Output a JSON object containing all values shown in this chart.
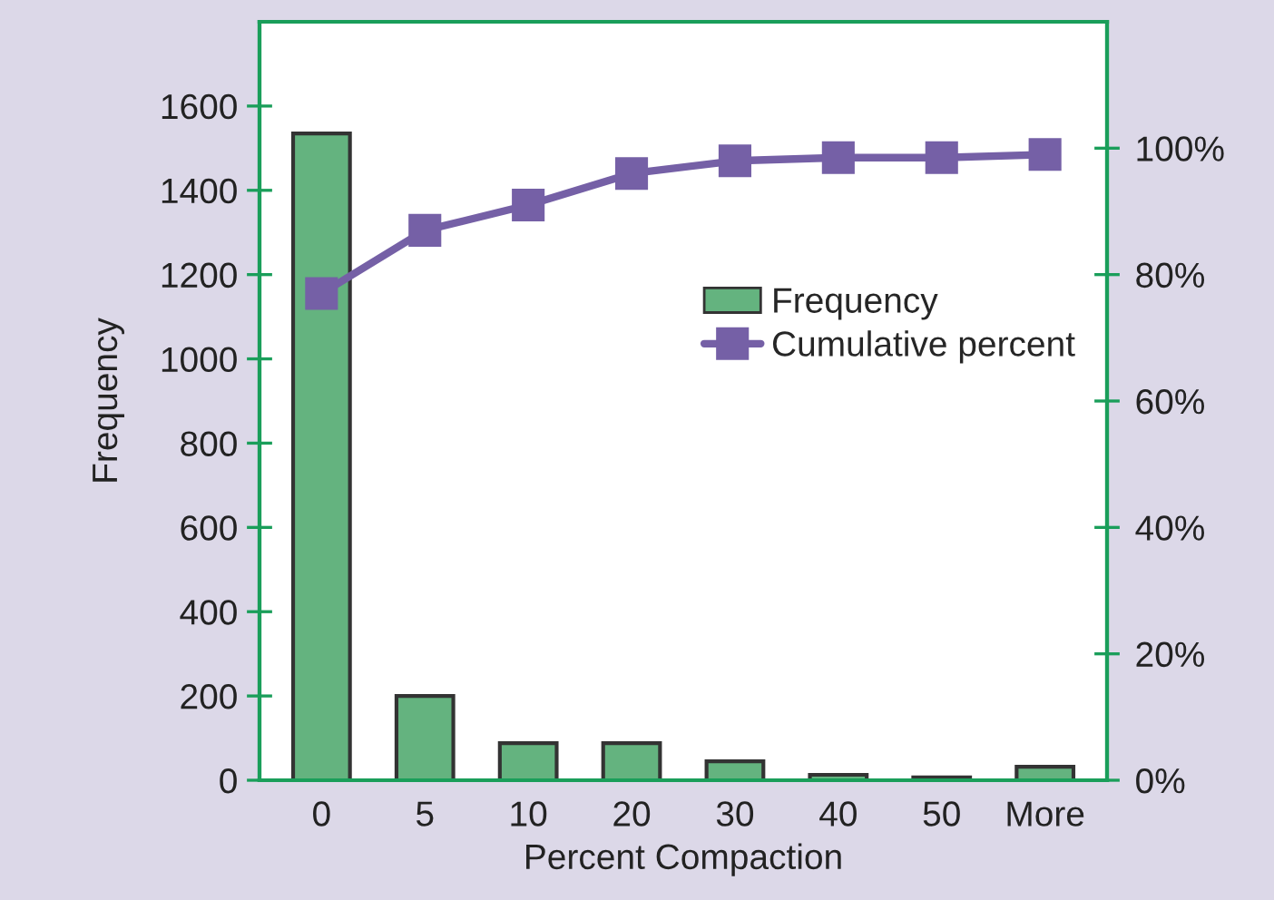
{
  "chart_data": {
    "type": "bar",
    "xlabel": "Percent Compaction",
    "ylabel": "Frequency",
    "categories": [
      "0",
      "5",
      "10",
      "20",
      "30",
      "40",
      "50",
      "More"
    ],
    "series": [
      {
        "name": "Frequency",
        "color": "#64b37f",
        "values": [
          1535,
          200,
          88,
          88,
          45,
          13,
          7,
          32
        ]
      },
      {
        "name": "Cumulative percent",
        "type": "line",
        "axis": "y2",
        "color": "#7560a6",
        "marker": "square",
        "values": [
          77,
          87,
          91,
          96,
          98,
          98.5,
          98.5,
          99
        ]
      }
    ],
    "ylim": [
      0,
      1800
    ],
    "yticks": [
      0,
      200,
      400,
      600,
      800,
      1000,
      1200,
      1400,
      1600
    ],
    "y2lim": [
      0,
      120
    ],
    "y2ticks": [
      {
        "value": 0,
        "label": "0%"
      },
      {
        "value": 20,
        "label": "20%"
      },
      {
        "value": 40,
        "label": "40%"
      },
      {
        "value": 60,
        "label": "60%"
      },
      {
        "value": 80,
        "label": "80%"
      },
      {
        "value": 100,
        "label": "100%"
      }
    ],
    "legend": "right",
    "grid": false
  }
}
